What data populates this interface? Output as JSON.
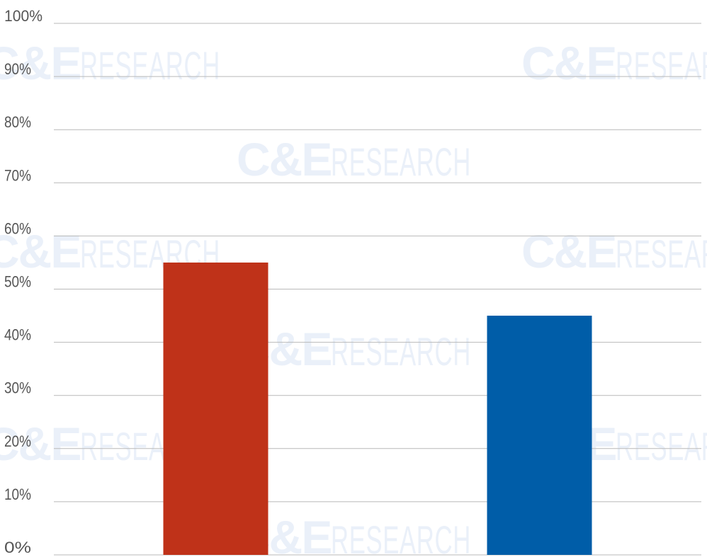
{
  "watermark": {
    "logo": "C&E",
    "word": "RESEARCH",
    "color": "#eaf0f9"
  },
  "chart_data": {
    "type": "bar",
    "categories": [
      "",
      ""
    ],
    "values": [
      55,
      45
    ],
    "colors": [
      "#bf3219",
      "#005da8"
    ],
    "ylim": [
      0,
      100
    ],
    "yticks": [
      "0%",
      "10%",
      "20%",
      "30%",
      "40%",
      "50%",
      "60%",
      "70%",
      "80%",
      "90%",
      "100%"
    ],
    "grid": true,
    "legend": "none",
    "title": "",
    "xlabel": "",
    "ylabel": ""
  }
}
